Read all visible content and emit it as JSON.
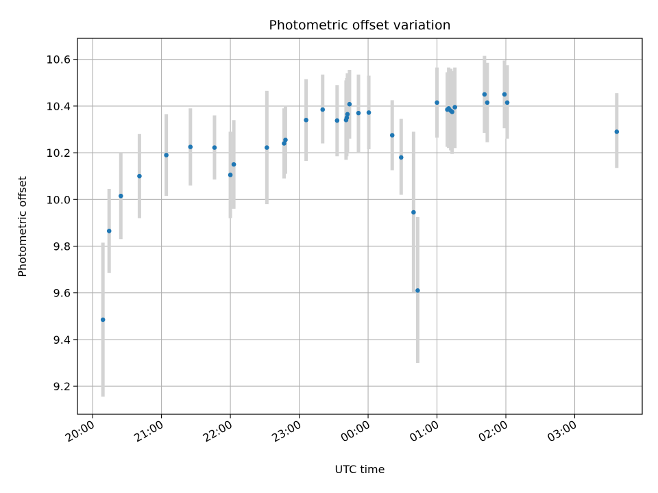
{
  "chart_data": {
    "type": "scatter",
    "title": "Photometric offset variation",
    "xlabel": "UTC time",
    "ylabel": "Photometric offset",
    "xlim": [
      "19:47",
      "23:59+3:59"
    ],
    "x_axis": {
      "range_hours": [
        19.78,
        27.98
      ],
      "ticks": [
        {
          "h": 20,
          "label": "20:00"
        },
        {
          "h": 21,
          "label": "21:00"
        },
        {
          "h": 22,
          "label": "22:00"
        },
        {
          "h": 23,
          "label": "23:00"
        },
        {
          "h": 24,
          "label": "00:00"
        },
        {
          "h": 25,
          "label": "01:00"
        },
        {
          "h": 26,
          "label": "02:00"
        },
        {
          "h": 27,
          "label": "03:00"
        }
      ]
    },
    "ylim": [
      9.08,
      10.69
    ],
    "y_ticks": [
      {
        "v": 9.2,
        "label": "9.2"
      },
      {
        "v": 9.4,
        "label": "9.4"
      },
      {
        "v": 9.6,
        "label": "9.6"
      },
      {
        "v": 9.8,
        "label": "9.8"
      },
      {
        "v": 10.0,
        "label": "10.0"
      },
      {
        "v": 10.2,
        "label": "10.2"
      },
      {
        "v": 10.4,
        "label": "10.4"
      },
      {
        "v": 10.6,
        "label": "10.6"
      }
    ],
    "grid": true,
    "point_color": "#1f77b4",
    "errorbar_color": "#d3d3d3",
    "points": [
      {
        "time": "20:09",
        "h": 20.15,
        "y": 9.485,
        "lo": 9.155,
        "hi": 9.815
      },
      {
        "time": "20:14",
        "h": 20.24,
        "y": 9.865,
        "lo": 9.685,
        "hi": 10.045
      },
      {
        "time": "20:25",
        "h": 20.41,
        "y": 10.015,
        "lo": 9.83,
        "hi": 10.2
      },
      {
        "time": "20:41",
        "h": 20.68,
        "y": 10.1,
        "lo": 9.92,
        "hi": 10.28
      },
      {
        "time": "21:04",
        "h": 21.07,
        "y": 10.19,
        "lo": 10.015,
        "hi": 10.365
      },
      {
        "time": "21:25",
        "h": 21.42,
        "y": 10.225,
        "lo": 10.06,
        "hi": 10.39
      },
      {
        "time": "21:46",
        "h": 21.77,
        "y": 10.222,
        "lo": 10.085,
        "hi": 10.36
      },
      {
        "time": "22:00",
        "h": 22.0,
        "y": 10.105,
        "lo": 9.92,
        "hi": 10.29
      },
      {
        "time": "22:03",
        "h": 22.05,
        "y": 10.15,
        "lo": 9.96,
        "hi": 10.34
      },
      {
        "time": "22:32",
        "h": 22.53,
        "y": 10.222,
        "lo": 9.98,
        "hi": 10.465
      },
      {
        "time": "22:47",
        "h": 22.78,
        "y": 10.24,
        "lo": 10.09,
        "hi": 10.39
      },
      {
        "time": "22:48",
        "h": 22.8,
        "y": 10.255,
        "lo": 10.11,
        "hi": 10.4
      },
      {
        "time": "23:06",
        "h": 23.1,
        "y": 10.34,
        "lo": 10.165,
        "hi": 10.515
      },
      {
        "time": "23:21",
        "h": 23.34,
        "y": 10.385,
        "lo": 10.24,
        "hi": 10.535
      },
      {
        "time": "23:33",
        "h": 23.55,
        "y": 10.338,
        "lo": 10.185,
        "hi": 10.49
      },
      {
        "time": "23:41",
        "h": 23.68,
        "y": 10.34,
        "lo": 10.17,
        "hi": 10.51
      },
      {
        "time": "23:41",
        "h": 23.69,
        "y": 10.35,
        "lo": 10.185,
        "hi": 10.52
      },
      {
        "time": "23:42",
        "h": 23.7,
        "y": 10.365,
        "lo": 10.2,
        "hi": 10.54
      },
      {
        "time": "23:44",
        "h": 23.73,
        "y": 10.408,
        "lo": 10.26,
        "hi": 10.555
      },
      {
        "time": "23:51",
        "h": 23.86,
        "y": 10.37,
        "lo": 10.2,
        "hi": 10.535
      },
      {
        "time": "00:00",
        "h": 24.01,
        "y": 10.372,
        "lo": 10.215,
        "hi": 10.53
      },
      {
        "time": "00:21",
        "h": 24.35,
        "y": 10.275,
        "lo": 10.125,
        "hi": 10.425
      },
      {
        "time": "00:29",
        "h": 24.48,
        "y": 10.18,
        "lo": 10.02,
        "hi": 10.345
      },
      {
        "time": "00:40",
        "h": 24.66,
        "y": 9.945,
        "lo": 9.6,
        "hi": 10.29
      },
      {
        "time": "00:43",
        "h": 24.72,
        "y": 9.61,
        "lo": 9.3,
        "hi": 9.925
      },
      {
        "time": "01:00",
        "h": 25.0,
        "y": 10.415,
        "lo": 10.265,
        "hi": 10.565
      },
      {
        "time": "01:09",
        "h": 25.15,
        "y": 10.385,
        "lo": 10.225,
        "hi": 10.545
      },
      {
        "time": "01:10",
        "h": 25.17,
        "y": 10.39,
        "lo": 10.22,
        "hi": 10.565
      },
      {
        "time": "01:12",
        "h": 25.2,
        "y": 10.38,
        "lo": 10.21,
        "hi": 10.56
      },
      {
        "time": "01:13",
        "h": 25.22,
        "y": 10.375,
        "lo": 10.195,
        "hi": 10.55
      },
      {
        "time": "01:15",
        "h": 25.26,
        "y": 10.395,
        "lo": 10.22,
        "hi": 10.565
      },
      {
        "time": "01:41",
        "h": 25.69,
        "y": 10.45,
        "lo": 10.285,
        "hi": 10.615
      },
      {
        "time": "01:43",
        "h": 25.73,
        "y": 10.415,
        "lo": 10.245,
        "hi": 10.585
      },
      {
        "time": "01:59",
        "h": 25.98,
        "y": 10.45,
        "lo": 10.305,
        "hi": 10.595
      },
      {
        "time": "02:01",
        "h": 26.02,
        "y": 10.415,
        "lo": 10.26,
        "hi": 10.575
      },
      {
        "time": "03:36",
        "h": 27.61,
        "y": 10.29,
        "lo": 10.135,
        "hi": 10.455
      }
    ]
  }
}
